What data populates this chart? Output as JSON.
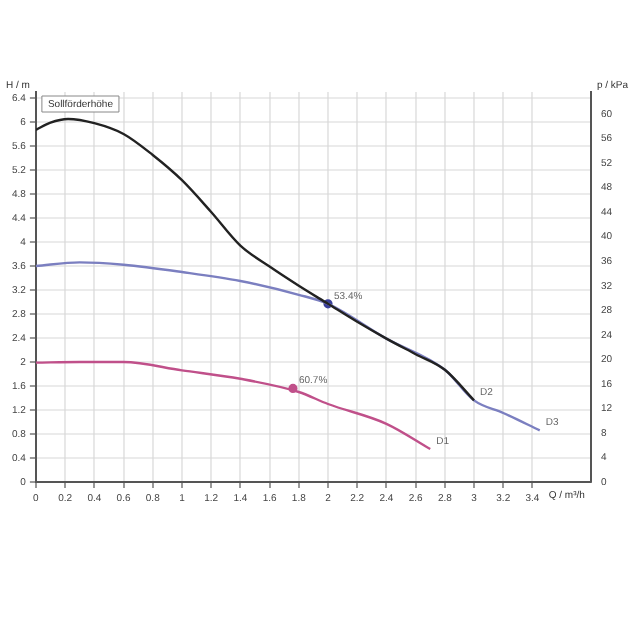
{
  "chart_data": {
    "type": "line",
    "ylabel": "H / m",
    "y2label": "p / kPa",
    "xlabel": "Q / m³/h",
    "xlim": [
      0,
      3.8
    ],
    "ylim": [
      0,
      6.5
    ],
    "y2lim": [
      0,
      63.6
    ],
    "xticks": [
      0,
      0.2,
      0.4,
      0.6,
      0.8,
      1,
      1.2,
      1.4,
      1.6,
      1.8,
      2,
      2.2,
      2.4,
      2.6,
      2.8,
      3,
      3.2,
      3.4
    ],
    "yticks": [
      0,
      0.4,
      0.8,
      1.2,
      1.6,
      2,
      2.4,
      2.8,
      3.2,
      3.6,
      4,
      4.4,
      4.8,
      5.2,
      5.6,
      6,
      6.4
    ],
    "y2ticks": [
      0,
      4,
      8,
      12,
      16,
      20,
      24,
      28,
      32,
      36,
      40,
      44,
      48,
      52,
      56,
      60
    ],
    "grid": true,
    "marker": "none",
    "line_style": "solid",
    "series": [
      {
        "color": "#222222",
        "x": [
          0,
          0.1,
          0.22,
          0.4,
          0.6,
          0.8,
          1,
          1.2,
          1.4,
          1.6,
          1.8,
          2,
          2.2,
          2.4,
          2.6,
          2.8,
          3
        ],
        "values": [
          5.87,
          5.99,
          6.05,
          5.98,
          5.8,
          5.45,
          5.03,
          4.5,
          3.94,
          3.59,
          3.27,
          2.97,
          2.67,
          2.39,
          2.13,
          1.87,
          1.36
        ]
      },
      {
        "color": "#7b7fc0",
        "x": [
          0,
          0.3,
          0.6,
          1,
          1.4,
          1.8,
          2,
          2.4,
          2.8,
          3,
          3.2,
          3.45
        ],
        "values": [
          3.6,
          3.66,
          3.62,
          3.5,
          3.35,
          3.12,
          2.97,
          2.39,
          1.87,
          1.36,
          1.15,
          0.86
        ]
      },
      {
        "color": "#c0508a",
        "x": [
          0,
          0.3,
          0.6,
          1,
          1.4,
          1.8,
          2,
          2.4,
          2.7
        ],
        "values": [
          1.99,
          2,
          2,
          1.86,
          1.72,
          1.5,
          1.3,
          0.97,
          0.55
        ]
      },
      {
        "type": "scatter",
        "marker": "circle",
        "color": "#3a3f9a",
        "x": [
          2
        ],
        "values": [
          2.97
        ]
      },
      {
        "type": "scatter",
        "marker": "circle",
        "color": "#c0508a",
        "x": [
          1.76
        ],
        "values": [
          1.56
        ]
      }
    ],
    "annotations": [
      "Sollförderhöhe",
      {
        "text": "53.4%",
        "x": 2,
        "y": 2.97
      },
      {
        "text": "60.7%",
        "x": 1.76,
        "y": 1.56
      },
      {
        "text": "D1",
        "x": 2.7,
        "y": 0.55
      },
      {
        "text": "D2",
        "x": 3,
        "y": 1.36
      },
      {
        "text": "D3",
        "x": 3.45,
        "y": 0.86
      }
    ]
  }
}
